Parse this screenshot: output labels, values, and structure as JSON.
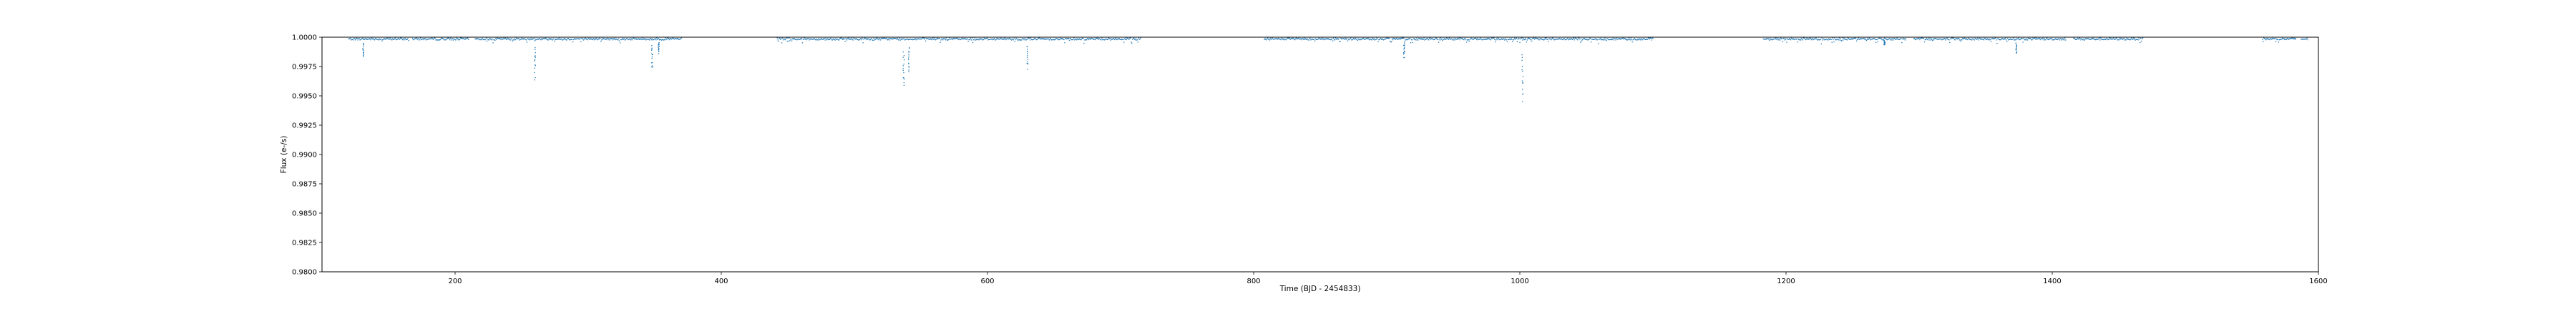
{
  "chart_data": {
    "type": "scatter",
    "title": "",
    "xlabel": "Time (BJD - 2454833)",
    "ylabel": "Flux (e-/s)",
    "xlim": [
      100,
      1600
    ],
    "ylim": [
      0.98,
      1.0
    ],
    "x_ticks": [
      200,
      400,
      600,
      800,
      1000,
      1200,
      1400,
      1600
    ],
    "y_ticks": [
      0.98,
      0.9825,
      0.985,
      0.9875,
      0.99,
      0.9925,
      0.995,
      0.9975,
      1.0
    ],
    "x_tick_labels": [
      "200",
      "400",
      "600",
      "800",
      "1000",
      "1200",
      "1400",
      "1600"
    ],
    "y_tick_labels": [
      "0.9800",
      "0.9825",
      "0.9850",
      "0.9875",
      "0.9900",
      "0.9925",
      "0.9950",
      "0.9975",
      "1.0000"
    ],
    "grid": false,
    "legend": "none",
    "series_color": "#1f77b4",
    "observation_segments": [
      [
        120,
        165
      ],
      [
        168,
        210
      ],
      [
        215,
        370
      ],
      [
        442,
        715
      ],
      [
        808,
        1100
      ],
      [
        1183,
        1290
      ],
      [
        1296,
        1410
      ],
      [
        1416,
        1468
      ],
      [
        1558,
        1583
      ],
      [
        1587,
        1592
      ]
    ],
    "transits": [
      {
        "t": 131,
        "depth": 0.0017
      },
      {
        "t": 260,
        "depth": 0.0035
      },
      {
        "t": 348,
        "depth": 0.0028
      },
      {
        "t": 353,
        "depth": 0.0013
      },
      {
        "t": 537,
        "depth": 0.0047
      },
      {
        "t": 541,
        "depth": 0.003
      },
      {
        "t": 630,
        "depth": 0.0026
      },
      {
        "t": 913,
        "depth": 0.0017
      },
      {
        "t": 1002,
        "depth": 0.0058
      },
      {
        "t": 1274,
        "depth": 0.0006
      },
      {
        "t": 1373,
        "depth": 0.0014
      }
    ],
    "out_of_transit_flux": 0.99985
  }
}
